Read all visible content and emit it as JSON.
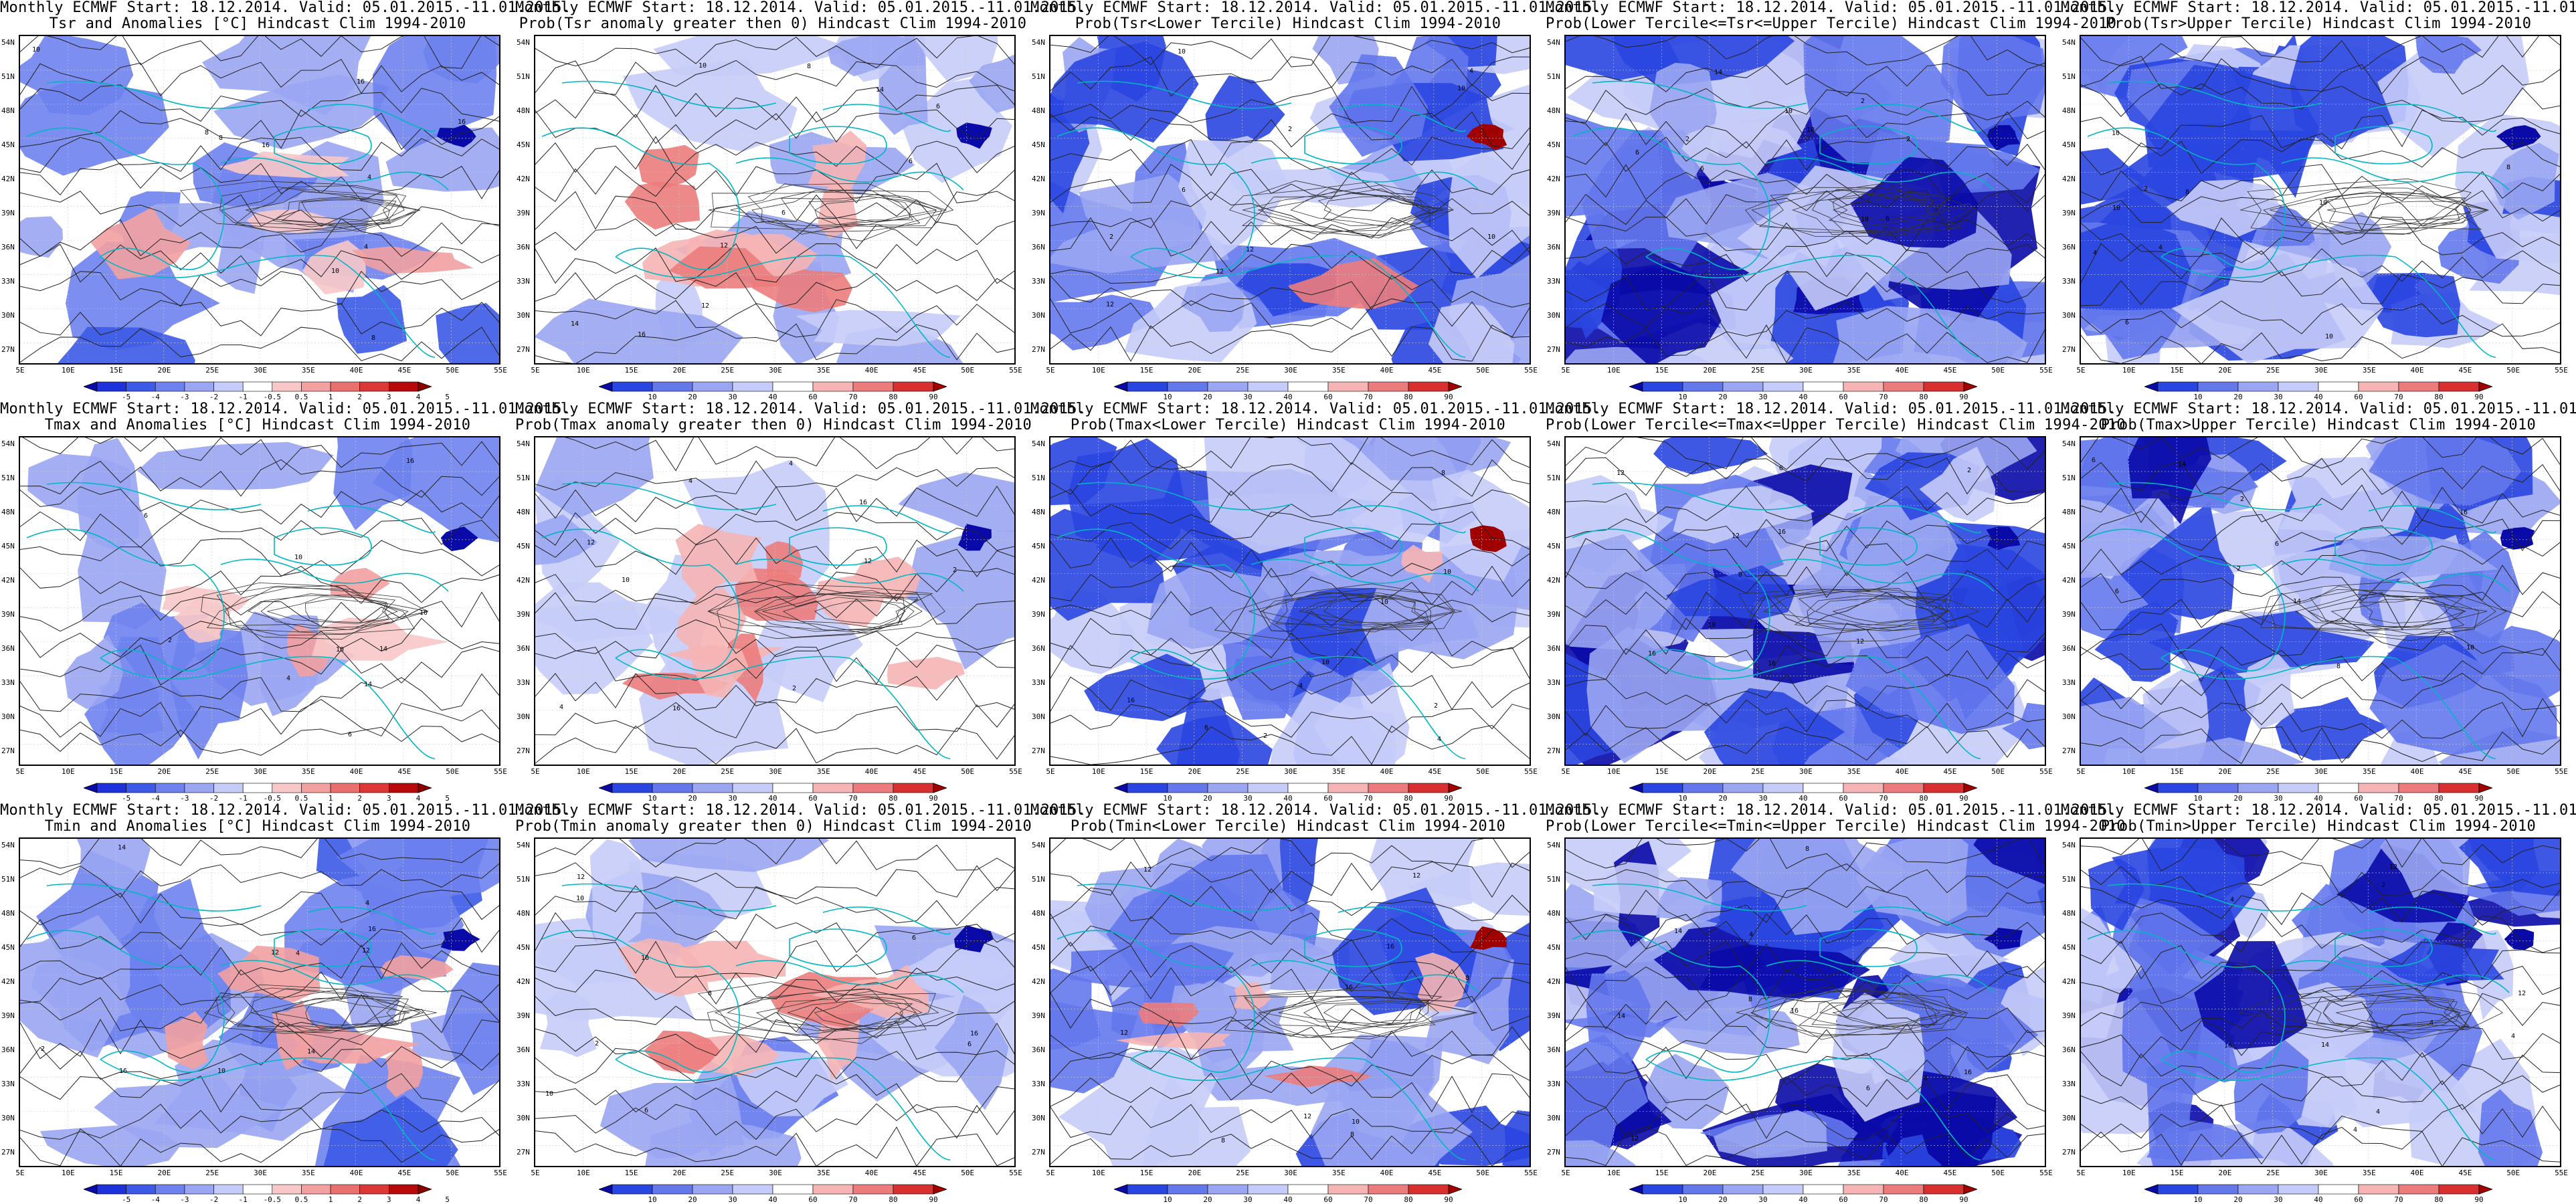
{
  "header_line": "Monthly ECMWF Start: 18.12.2014. Valid: 05.01.2015.-11.01.2015.",
  "lat_labels": [
    "54N",
    "51N",
    "48N",
    "45N",
    "42N",
    "39N",
    "36N",
    "33N",
    "30N",
    "27N"
  ],
  "lon_labels": [
    "5E",
    "10E",
    "15E",
    "20E",
    "25E",
    "30E",
    "35E",
    "40E",
    "45E",
    "50E",
    "55E"
  ],
  "colorbars": {
    "anomaly": {
      "ticks": [
        "-5",
        "-4",
        "-3",
        "-2",
        "-1",
        "-0.5",
        "0.5",
        "1",
        "2",
        "3",
        "4",
        "5"
      ],
      "colors": [
        "#0a0aa8",
        "#1e32dc",
        "#3c5ae6",
        "#6e82ee",
        "#9aa6f2",
        "#c6ccf8",
        "#ffffff",
        "#f8c8c8",
        "#f2a0a0",
        "#ea7070",
        "#dc3838",
        "#b80a0a",
        "#8a0000"
      ]
    },
    "probability": {
      "ticks": [
        "10",
        "20",
        "30",
        "40",
        "60",
        "70",
        "80",
        "90"
      ],
      "colors": [
        "#0a0aa8",
        "#2a46e0",
        "#6478ec",
        "#9aa6f2",
        "#c6ccf8",
        "#ffffff",
        "#f6b4b4",
        "#ec7c7c",
        "#d83030",
        "#a00000"
      ]
    }
  },
  "panels": [
    {
      "line2": "Tsr and Anomalies [°C] Hindcast Clim 1994-2010",
      "colorbar": "anomaly",
      "shade": "anomaly",
      "blue": 0.25,
      "red": 0.12
    },
    {
      "line2": "Prob(Tsr anomaly greater then 0) Hindcast Clim 1994-2010",
      "colorbar": "probability",
      "shade": "warm",
      "blue": 0.18,
      "red": 0.22
    },
    {
      "line2": "Prob(Tsr<Lower Tercile) Hindcast Clim 1994-2010",
      "colorbar": "probability",
      "shade": "cold",
      "blue": 0.55,
      "red": 0.02
    },
    {
      "line2": "Prob(Lower Tercile<=Tsr<=Upper Tercile) Hindcast Clim 1994-2010",
      "colorbar": "probability",
      "shade": "cold",
      "blue": 0.8,
      "red": 0.0
    },
    {
      "line2": "Prob(Tsr>Upper Tercile) Hindcast Clim 1994-2010",
      "colorbar": "probability",
      "shade": "cold",
      "blue": 0.65,
      "red": 0.0
    },
    {
      "line2": "Tmax and Anomalies [°C] Hindcast Clim 1994-2010",
      "colorbar": "anomaly",
      "shade": "anomaly",
      "blue": 0.15,
      "red": 0.16
    },
    {
      "line2": "Prob(Tmax anomaly greater then 0) Hindcast Clim 1994-2010",
      "colorbar": "probability",
      "shade": "warm",
      "blue": 0.12,
      "red": 0.28
    },
    {
      "line2": "Prob(Tmax<Lower Tercile) Hindcast Clim 1994-2010",
      "colorbar": "probability",
      "shade": "cold",
      "blue": 0.6,
      "red": 0.02
    },
    {
      "line2": "Prob(Lower Tercile<=Tmax<=Upper Tercile) Hindcast Clim 1994-2010",
      "colorbar": "probability",
      "shade": "cold",
      "blue": 0.78,
      "red": 0.0
    },
    {
      "line2": "Prob(Tmax>Upper Tercile) Hindcast Clim 1994-2010",
      "colorbar": "probability",
      "shade": "cold",
      "blue": 0.62,
      "red": 0.0
    },
    {
      "line2": "Tmin and Anomalies [°C] Hindcast Clim 1994-2010",
      "colorbar": "anomaly",
      "shade": "anomaly",
      "blue": 0.3,
      "red": 0.14
    },
    {
      "line2": "Prob(Tmin anomaly greater then 0) Hindcast Clim 1994-2010",
      "colorbar": "probability",
      "shade": "warm",
      "blue": 0.25,
      "red": 0.2
    },
    {
      "line2": "Prob(Tmin<Lower Tercile) Hindcast Clim 1994-2010",
      "colorbar": "probability",
      "shade": "mixed",
      "blue": 0.55,
      "red": 0.12
    },
    {
      "line2": "Prob(Lower Tercile<=Tmin<=Upper Tercile) Hindcast Clim 1994-2010",
      "colorbar": "probability",
      "shade": "cold",
      "blue": 0.82,
      "red": 0.0
    },
    {
      "line2": "Prob(Tmin>Upper Tercile) Hindcast Clim 1994-2010",
      "colorbar": "probability",
      "shade": "cold",
      "blue": 0.75,
      "red": 0.0
    }
  ]
}
